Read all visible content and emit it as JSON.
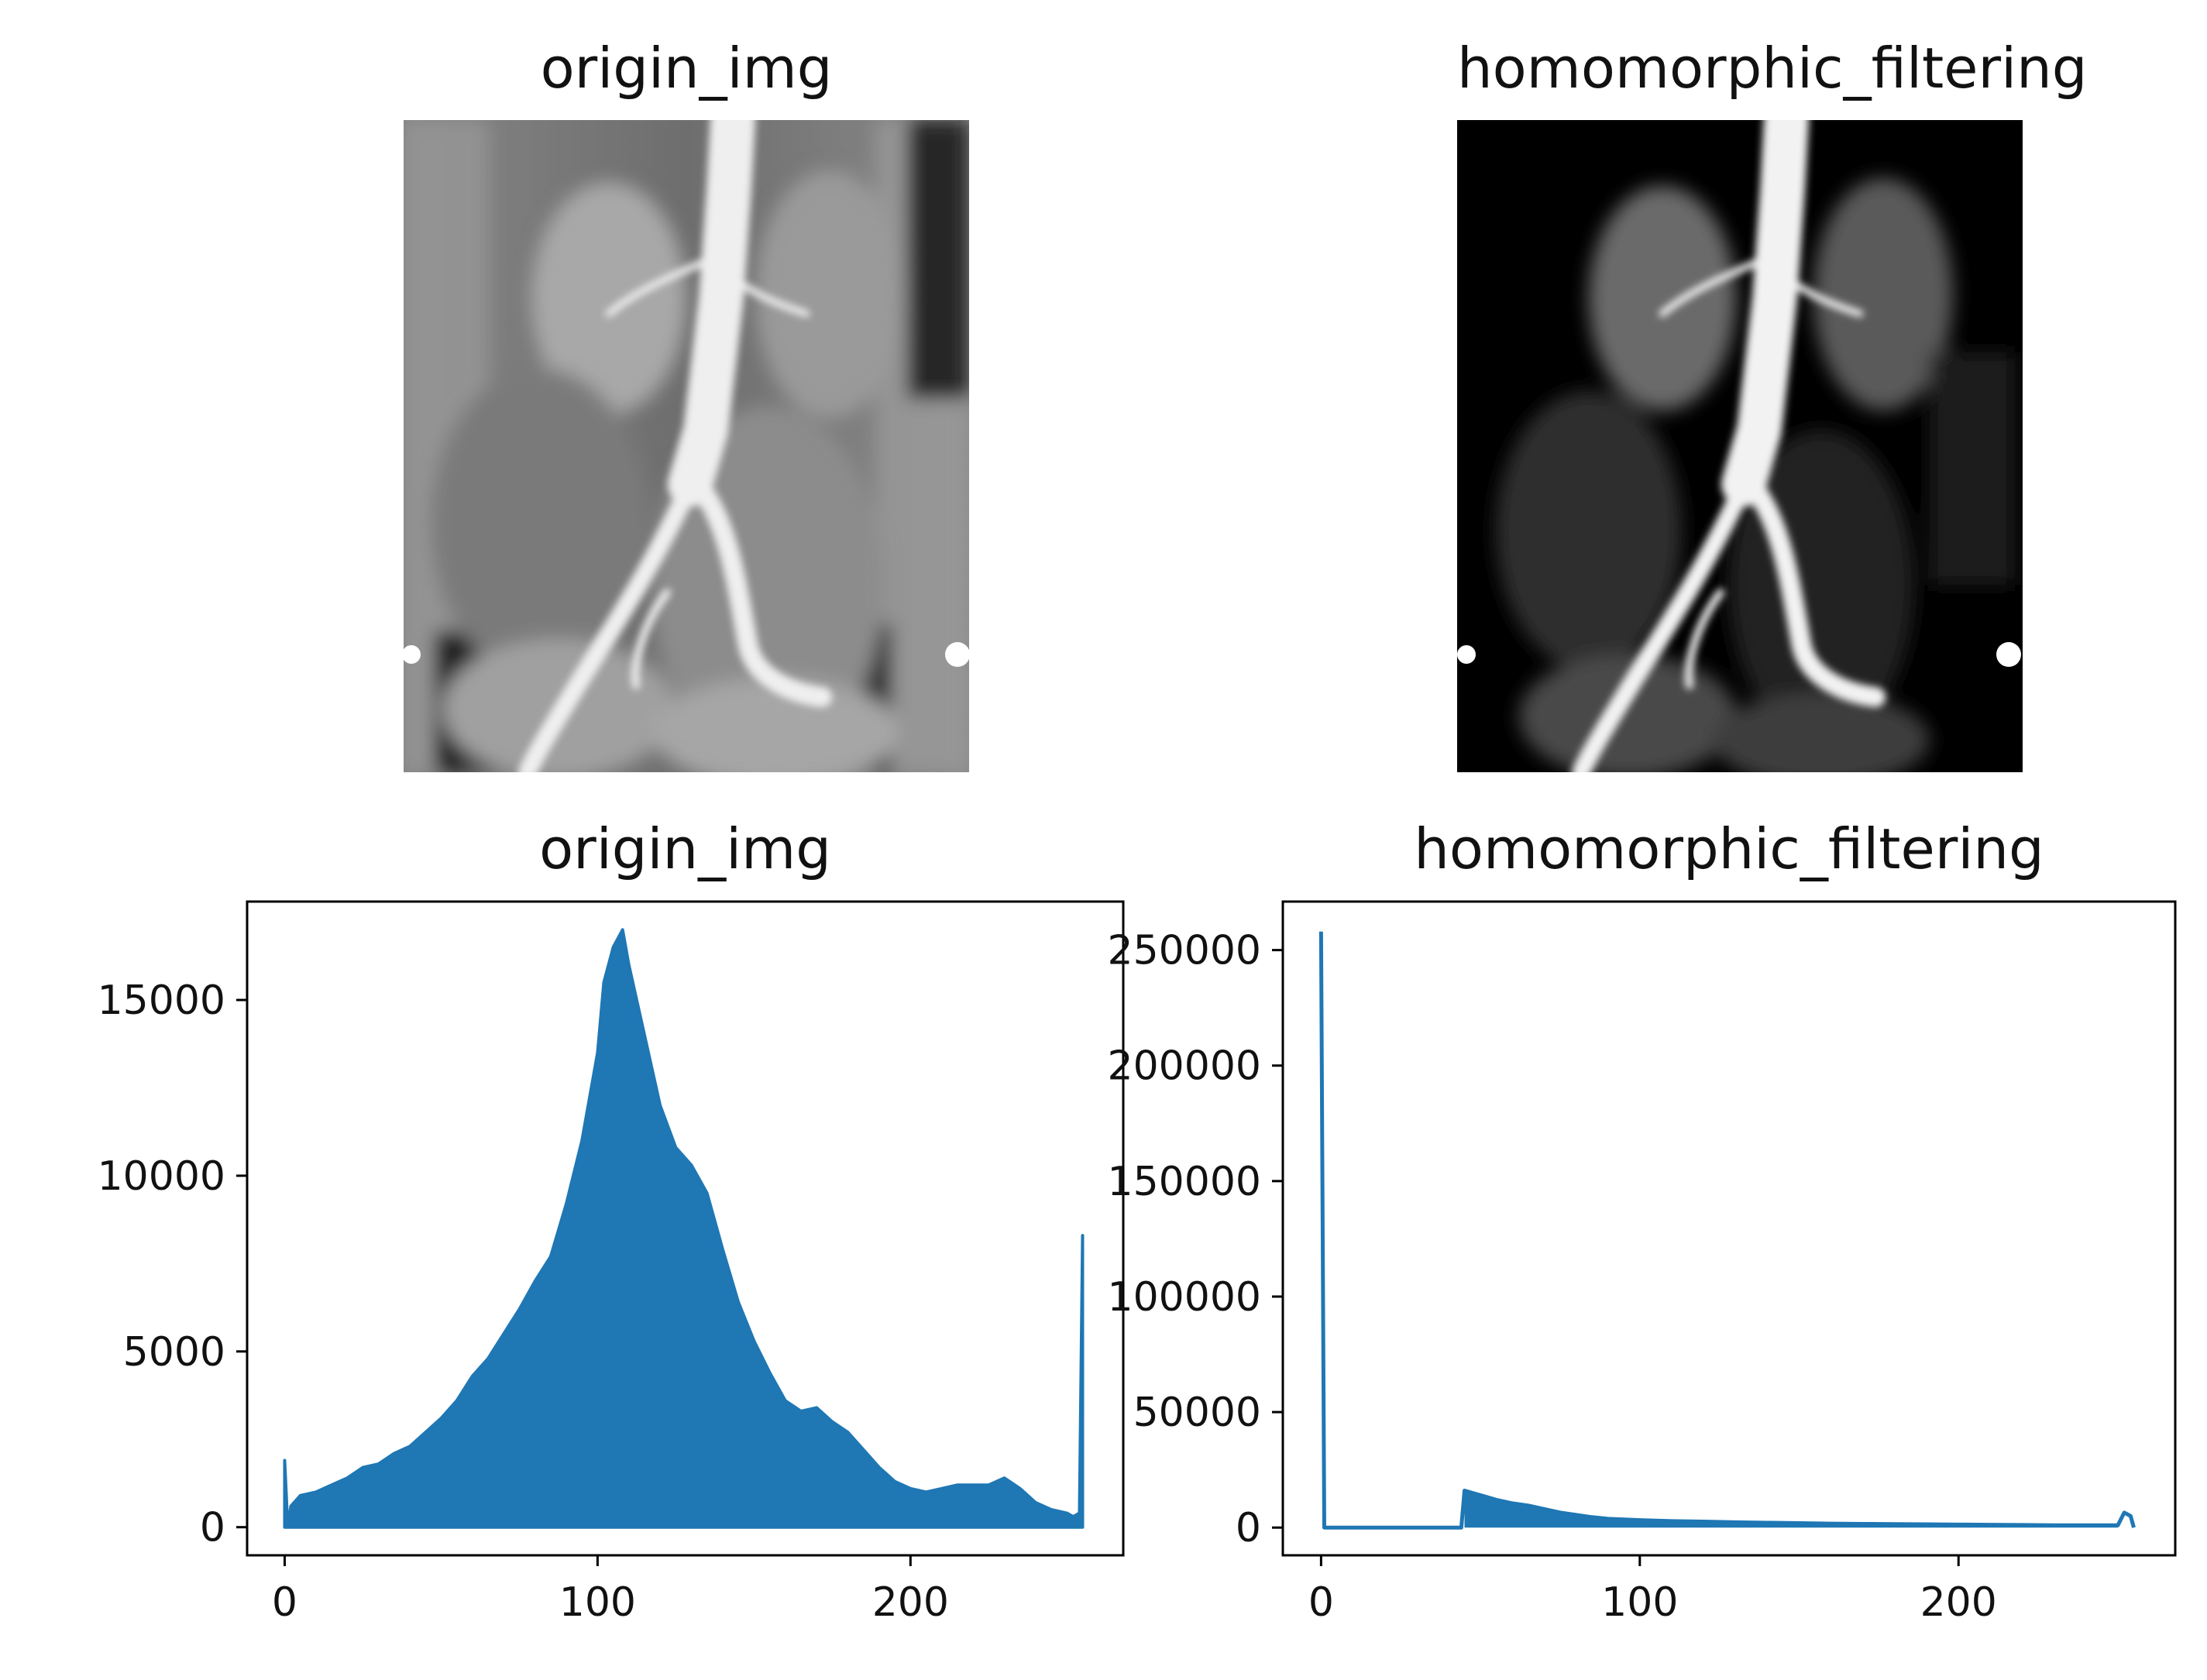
{
  "figure": {
    "panels": {
      "top_left": {
        "title": "origin_img"
      },
      "top_right": {
        "title": "homomorphic_filtering"
      },
      "bottom_left": {
        "title": "origin_img"
      },
      "bottom_right": {
        "title": "homomorphic_filtering"
      }
    }
  },
  "colors": {
    "line": "#1f77b4",
    "axes": "#000000",
    "text": "#111111"
  },
  "chart_data": [
    {
      "type": "line",
      "title": "origin_img",
      "xlabel": "",
      "ylabel": "",
      "xlim": [
        -12,
        268
      ],
      "ylim": [
        -800,
        17800
      ],
      "xticks": [
        0,
        100,
        200
      ],
      "yticks": [
        0,
        5000,
        10000,
        15000
      ],
      "grid": false,
      "envelope_top": {
        "x": [
          0,
          1,
          2,
          5,
          10,
          15,
          20,
          25,
          30,
          35,
          40,
          45,
          50,
          55,
          60,
          65,
          70,
          75,
          80,
          85,
          90,
          95,
          100,
          102,
          105,
          108,
          110,
          115,
          120,
          125,
          130,
          135,
          140,
          145,
          150,
          155,
          160,
          165,
          170,
          175,
          180,
          185,
          190,
          195,
          200,
          205,
          210,
          215,
          220,
          225,
          230,
          235,
          240,
          245,
          250,
          252,
          254,
          255
        ],
        "y": [
          1900,
          0,
          600,
          900,
          1000,
          1200,
          1400,
          1700,
          1800,
          2100,
          2300,
          2700,
          3100,
          3600,
          4300,
          4800,
          5500,
          6200,
          7000,
          7700,
          9200,
          11000,
          13500,
          15500,
          16500,
          17000,
          16000,
          14000,
          12000,
          10800,
          10300,
          9500,
          7900,
          6400,
          5300,
          4400,
          3600,
          3300,
          3400,
          3000,
          2700,
          2200,
          1700,
          1300,
          1100,
          1000,
          1100,
          1200,
          1200,
          1200,
          1400,
          1100,
          700,
          500,
          400,
          300,
          400,
          8300
        ]
      }
    },
    {
      "type": "line",
      "title": "homomorphic_filtering",
      "xlabel": "",
      "ylabel": "",
      "xlim": [
        -12,
        268
      ],
      "ylim": [
        -12000,
        271000
      ],
      "xticks": [
        0,
        100,
        200
      ],
      "yticks": [
        0,
        50000,
        100000,
        150000,
        200000,
        250000
      ],
      "grid": false,
      "x": [
        0,
        1,
        2,
        10,
        20,
        30,
        40,
        44,
        45,
        50,
        55,
        60,
        65,
        70,
        75,
        80,
        85,
        90,
        100,
        110,
        120,
        130,
        140,
        150,
        160,
        170,
        180,
        190,
        200,
        210,
        220,
        230,
        240,
        250,
        252,
        254,
        255
      ],
      "y": [
        258000,
        0,
        0,
        0,
        0,
        0,
        0,
        0,
        16000,
        14000,
        12000,
        10500,
        9500,
        8000,
        6500,
        5500,
        4500,
        3800,
        3200,
        2800,
        2600,
        2300,
        2100,
        1900,
        1700,
        1600,
        1500,
        1400,
        1300,
        1200,
        1100,
        1000,
        1000,
        1000,
        6500,
        5000,
        0
      ]
    }
  ]
}
